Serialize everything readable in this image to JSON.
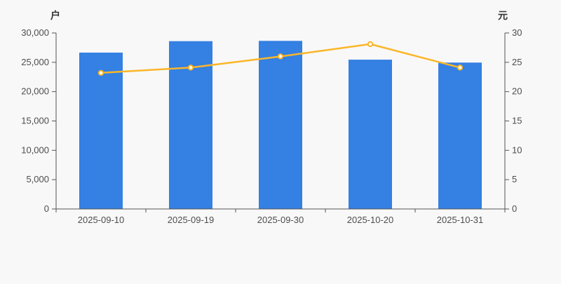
{
  "chart_data": {
    "type": "combo",
    "categories": [
      "2025-09-10",
      "2025-09-19",
      "2025-09-30",
      "2025-10-20",
      "2025-10-31"
    ],
    "series": [
      {
        "name": "bar-series",
        "type": "bar",
        "axis": "left",
        "values": [
          26650,
          28600,
          28650,
          25450,
          24950
        ]
      },
      {
        "name": "line-series",
        "type": "line",
        "axis": "right",
        "values": [
          23.2,
          24.1,
          26.0,
          28.1,
          24.1
        ]
      }
    ],
    "left_axis": {
      "title": "户",
      "min": 0,
      "max": 30000,
      "tick_step": 5000,
      "tick_labels": [
        "0",
        "5,000",
        "10,000",
        "15,000",
        "20,000",
        "25,000",
        "30,000"
      ]
    },
    "right_axis": {
      "title": "元",
      "min": 0,
      "max": 30,
      "tick_step": 5,
      "tick_labels": [
        "0",
        "5",
        "10",
        "15",
        "20",
        "25",
        "30"
      ]
    },
    "title": "",
    "legend": null,
    "grid": false,
    "colors": {
      "bar": "#3480e3",
      "line": "#fbb629",
      "marker_fill": "#ffffff",
      "axis_line": "#555555",
      "tick_text": "#4d4d4d",
      "background": "#f8f8f8"
    }
  }
}
